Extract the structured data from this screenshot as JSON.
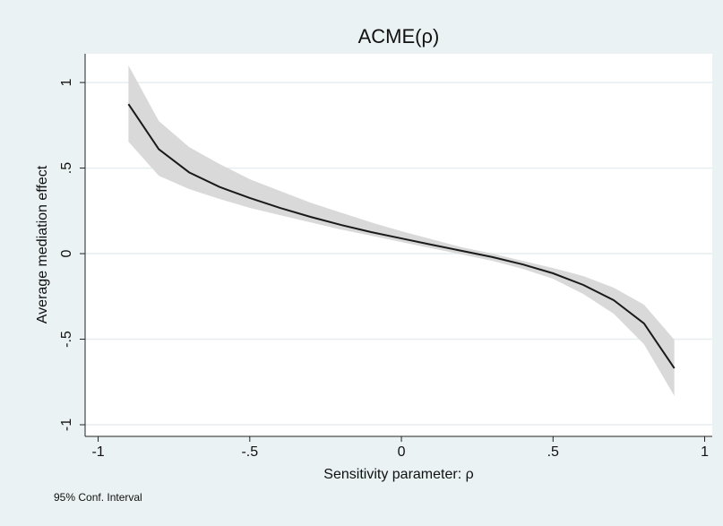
{
  "chart_data": {
    "type": "line",
    "title": "ACME(ρ)",
    "x_label": "Sensitivity parameter: ρ",
    "y_label": "Average mediation effect",
    "note": "95% Conf. Interval",
    "x": [
      -0.9,
      -0.8,
      -0.7,
      -0.6,
      -0.5,
      -0.4,
      -0.3,
      -0.2,
      -0.1,
      0,
      0.1,
      0.2,
      0.3,
      0.4,
      0.5,
      0.6,
      0.7,
      0.8,
      0.9
    ],
    "values": [
      0.874,
      0.61,
      0.475,
      0.39,
      0.325,
      0.267,
      0.215,
      0.168,
      0.126,
      0.089,
      0.052,
      0.016,
      -0.02,
      -0.063,
      -0.115,
      -0.183,
      -0.272,
      -0.408,
      -0.67
    ],
    "band": {
      "upper": [
        1.1,
        0.775,
        0.623,
        0.524,
        0.435,
        0.366,
        0.298,
        0.24,
        0.183,
        0.131,
        0.084,
        0.037,
        0,
        -0.042,
        -0.084,
        -0.131,
        -0.199,
        -0.298,
        -0.503
      ],
      "lower": [
        0.654,
        0.455,
        0.377,
        0.32,
        0.267,
        0.225,
        0.183,
        0.141,
        0.105,
        0.068,
        0.031,
        -0.005,
        -0.042,
        -0.089,
        -0.147,
        -0.236,
        -0.351,
        -0.529,
        -0.832
      ]
    },
    "color": "#1a1a1a",
    "band_color": "#d9d9d9",
    "xlim": [
      -1.043,
      1.025
    ],
    "ylim": [
      -1.068,
      1.168
    ],
    "xticks": [
      -1,
      {
        "value": -0.5,
        "label": "-.5"
      },
      0,
      {
        "value": 0.5,
        "label": ".5"
      },
      1
    ],
    "yticks": [
      -1,
      {
        "value": -0.5,
        "label": "-.5"
      },
      0,
      {
        "value": 0.5,
        "label": ".5"
      },
      1
    ],
    "grid": true
  }
}
